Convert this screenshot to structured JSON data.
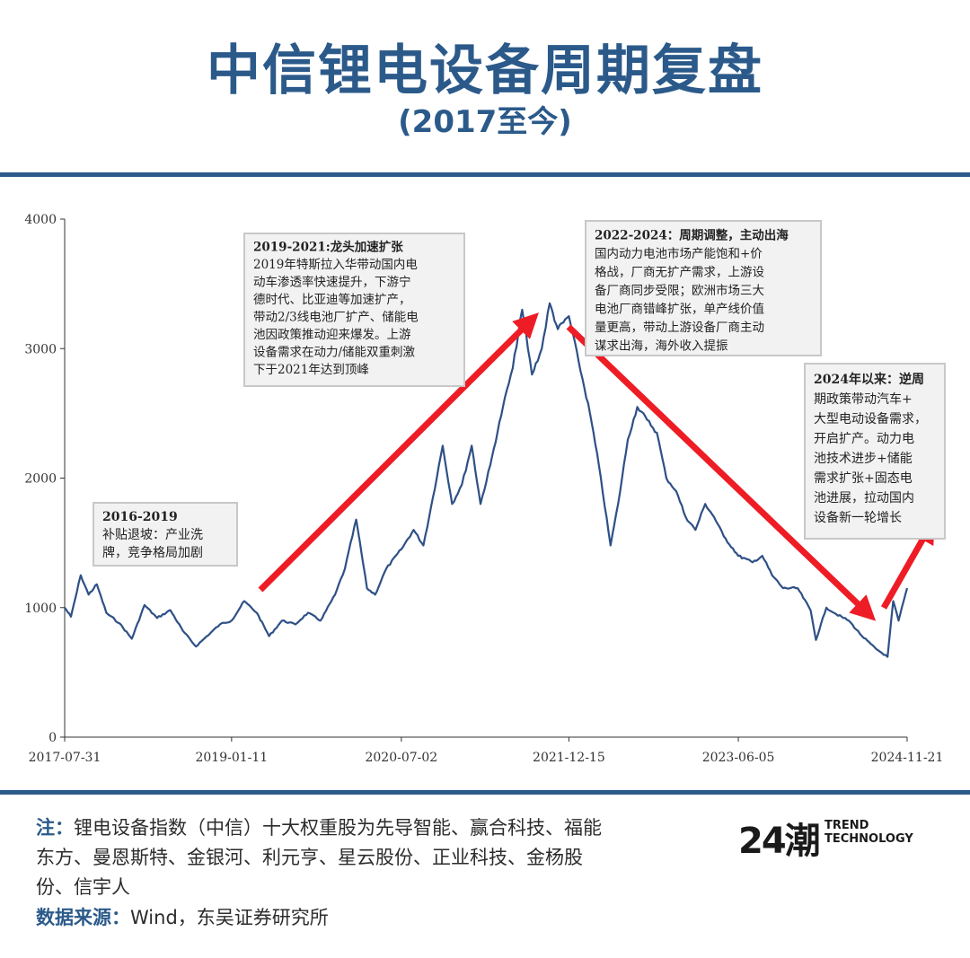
{
  "header": {
    "title": "中信锂电设备周期复盘",
    "subtitle": "(2017至今)"
  },
  "footer": {
    "note_label": "注：",
    "note_text": "锂电设备指数（中信）十大权重股为先导智能、赢合科技、福能东方、曼恩斯特、金银河、利元亨、星云股份、正业科技、金杨股份、信宇人",
    "source_label": "数据来源：",
    "source_text": "Wind，东吴证券研究所",
    "logo_digits": "24潮",
    "logo_line1": "TREND",
    "logo_line2": "TECHNOLOGY"
  },
  "colors": {
    "accent": "#2b5a8a",
    "line": "#2e5086",
    "arrow": "#ee1c25",
    "box_bg": "#f2f2f2",
    "box_border": "#c8c8c8"
  },
  "chart_data": {
    "type": "line",
    "x_tick_labels": [
      "2017-07-31",
      "2019-01-11",
      "2020-07-02",
      "2021-12-15",
      "2023-06-05",
      "2024-11-21"
    ],
    "y_ticks": [
      0,
      1000,
      2000,
      3000,
      4000
    ],
    "ylim": [
      0,
      4000
    ],
    "xlim": [
      "2017-07-31",
      "2024-11-21"
    ],
    "series": [
      {
        "points": [
          [
            "2017-07-31",
            1000
          ],
          [
            "2017-08-20",
            930
          ],
          [
            "2017-09-20",
            1250
          ],
          [
            "2017-10-15",
            1100
          ],
          [
            "2017-11-10",
            1180
          ],
          [
            "2017-12-10",
            960
          ],
          [
            "2018-01-20",
            880
          ],
          [
            "2018-03-01",
            760
          ],
          [
            "2018-04-10",
            1020
          ],
          [
            "2018-05-20",
            920
          ],
          [
            "2018-07-01",
            980
          ],
          [
            "2018-08-10",
            820
          ],
          [
            "2018-09-20",
            700
          ],
          [
            "2018-10-25",
            780
          ],
          [
            "2018-12-05",
            870
          ],
          [
            "2019-01-11",
            900
          ],
          [
            "2019-02-20",
            1050
          ],
          [
            "2019-04-01",
            960
          ],
          [
            "2019-05-10",
            780
          ],
          [
            "2019-06-20",
            900
          ],
          [
            "2019-08-01",
            870
          ],
          [
            "2019-09-10",
            960
          ],
          [
            "2019-10-20",
            900
          ],
          [
            "2019-12-05",
            1100
          ],
          [
            "2020-01-05",
            1300
          ],
          [
            "2020-02-10",
            1680
          ],
          [
            "2020-03-15",
            1150
          ],
          [
            "2020-04-10",
            1100
          ],
          [
            "2020-05-15",
            1300
          ],
          [
            "2020-07-02",
            1450
          ],
          [
            "2020-08-10",
            1600
          ],
          [
            "2020-09-10",
            1480
          ],
          [
            "2020-10-10",
            1850
          ],
          [
            "2020-11-10",
            2250
          ],
          [
            "2020-12-10",
            1800
          ],
          [
            "2021-01-10",
            1950
          ],
          [
            "2021-02-10",
            2250
          ],
          [
            "2021-03-10",
            1800
          ],
          [
            "2021-04-10",
            2100
          ],
          [
            "2021-05-20",
            2550
          ],
          [
            "2021-06-20",
            2850
          ],
          [
            "2021-07-20",
            3300
          ],
          [
            "2021-08-20",
            2800
          ],
          [
            "2021-09-20",
            3000
          ],
          [
            "2021-10-15",
            3350
          ],
          [
            "2021-11-10",
            3150
          ],
          [
            "2021-12-15",
            3250
          ],
          [
            "2022-01-15",
            2900
          ],
          [
            "2022-02-20",
            2500
          ],
          [
            "2022-03-20",
            2100
          ],
          [
            "2022-04-26",
            1480
          ],
          [
            "2022-05-20",
            1800
          ],
          [
            "2022-06-20",
            2300
          ],
          [
            "2022-07-20",
            2550
          ],
          [
            "2022-08-20",
            2450
          ],
          [
            "2022-09-20",
            2350
          ],
          [
            "2022-10-20",
            2000
          ],
          [
            "2022-11-20",
            1900
          ],
          [
            "2022-12-20",
            1700
          ],
          [
            "2023-01-20",
            1600
          ],
          [
            "2023-02-20",
            1800
          ],
          [
            "2023-03-20",
            1700
          ],
          [
            "2023-04-20",
            1550
          ],
          [
            "2023-06-05",
            1400
          ],
          [
            "2023-07-20",
            1350
          ],
          [
            "2023-08-20",
            1400
          ],
          [
            "2023-09-20",
            1250
          ],
          [
            "2023-10-25",
            1150
          ],
          [
            "2023-12-10",
            1150
          ],
          [
            "2024-01-20",
            980
          ],
          [
            "2024-02-06",
            750
          ],
          [
            "2024-03-10",
            1000
          ],
          [
            "2024-04-10",
            950
          ],
          [
            "2024-05-20",
            900
          ],
          [
            "2024-07-01",
            780
          ],
          [
            "2024-08-15",
            680
          ],
          [
            "2024-09-20",
            620
          ],
          [
            "2024-10-08",
            1050
          ],
          [
            "2024-10-25",
            900
          ],
          [
            "2024-11-10",
            1050
          ],
          [
            "2024-11-21",
            1150
          ]
        ]
      }
    ],
    "annotations": [
      {
        "title": "2016-2019",
        "lines": [
          "补贴退坡：产业洗",
          "牌，竞争格局加剧"
        ]
      },
      {
        "title": "2019-2021:龙头加速扩张",
        "lines": [
          "2019年特斯拉入华带动国内电",
          "动车渗透率快速提升，下游宁",
          "德时代、比亚迪等加速扩产，",
          "带动2/3线电池厂扩产、储能电",
          "池因政策推动迎来爆发。上游",
          "设备需求在动力/储能双重刺激",
          "下于2021年达到顶峰"
        ]
      },
      {
        "title": "2022-2024：周期调整，主动出海",
        "lines": [
          "国内动力电池市场产能饱和+价",
          "格战，厂商无扩产需求，上游设",
          "备厂商同步受限；欧洲市场三大",
          "电池厂商错峰扩张，单产线价值",
          "量更高，带动上游设备厂商主动",
          "谋求出海，海外收入提振"
        ]
      },
      {
        "title": "2024年以来：逆周",
        "lines": [
          "期政策带动汽车+",
          "大型电动设备需求，",
          "开启扩产。动力电",
          "池技术进步+储能",
          "需求扩张+固态电",
          "池进展，拉动国内",
          "设备新一轮增长"
        ]
      }
    ]
  }
}
